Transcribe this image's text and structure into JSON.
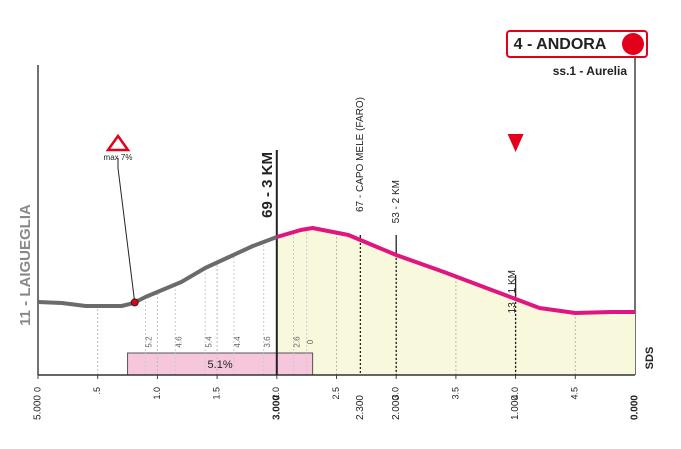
{
  "chart_data": {
    "type": "line",
    "start_label": "11 - LAIGUEGLIA",
    "finish_label": "4 - ANDORA",
    "finish_sublabel": "ss.1 - Aurelia",
    "logo": "SDS",
    "max_gradient": {
      "label": "max 7%",
      "x": 0.81
    },
    "climb": {
      "label": "5.1%",
      "start": 0.75,
      "end": 2.3
    },
    "gradients": [
      {
        "x": 0.9,
        "label": "5.2"
      },
      {
        "x": 1.15,
        "label": "4.6"
      },
      {
        "x": 1.4,
        "label": "5.4"
      },
      {
        "x": 1.64,
        "label": "4.4"
      },
      {
        "x": 1.89,
        "label": "3.6"
      },
      {
        "x": 2.14,
        "label": "2.6"
      },
      {
        "x": 2.25,
        "label": "0"
      }
    ],
    "markers": [
      {
        "label": "69 - 3 KM",
        "remaining": 3
      },
      {
        "label": "67 - CAPO MELE (FARO)",
        "remaining": 2.3
      },
      {
        "label": "53 - 2 KM",
        "remaining": 2
      },
      {
        "label": "13 - 1 KM",
        "remaining": 1
      }
    ],
    "series": [
      {
        "color": "#6b6b6b",
        "x": [
          0,
          0.2,
          0.4,
          0.6,
          0.7,
          0.8,
          0.9,
          1.0,
          1.2,
          1.4,
          1.6,
          1.8,
          2.0
        ],
        "values": [
          73,
          72,
          69,
          69,
          69,
          72,
          78,
          83,
          93,
          107,
          118,
          129,
          138
        ]
      },
      {
        "color": "#e0157f",
        "x": [
          2.0,
          2.2,
          2.3,
          2.6,
          3.0,
          3.4,
          3.8,
          4.0,
          4.2,
          4.5,
          4.8,
          5.0
        ],
        "values": [
          138,
          145,
          147,
          140,
          120,
          103,
          85,
          76,
          67,
          62,
          63,
          63
        ]
      }
    ],
    "xlim": [
      0,
      5
    ],
    "ylim": [
      0,
      315
    ],
    "xticks": [
      0,
      {
        "value": 0.5,
        "label": ".5"
      },
      {
        "value": 1,
        "label": "1.0"
      },
      1.5,
      {
        "value": 2,
        "label": "2.0"
      },
      2.5,
      {
        "value": 3,
        "label": "3.0"
      },
      3.5,
      {
        "value": 4,
        "label": "4.0"
      },
      4.5
    ],
    "remaining_ticks": [
      {
        "value": 5,
        "label": "5.000"
      },
      {
        "value": 3,
        "label": "3.000"
      },
      {
        "value": 2.3,
        "label": "2.300"
      },
      {
        "value": 2,
        "label": "2.000"
      },
      {
        "value": 1,
        "label": "1.000"
      },
      {
        "value": 0,
        "label": "0.000"
      }
    ]
  }
}
